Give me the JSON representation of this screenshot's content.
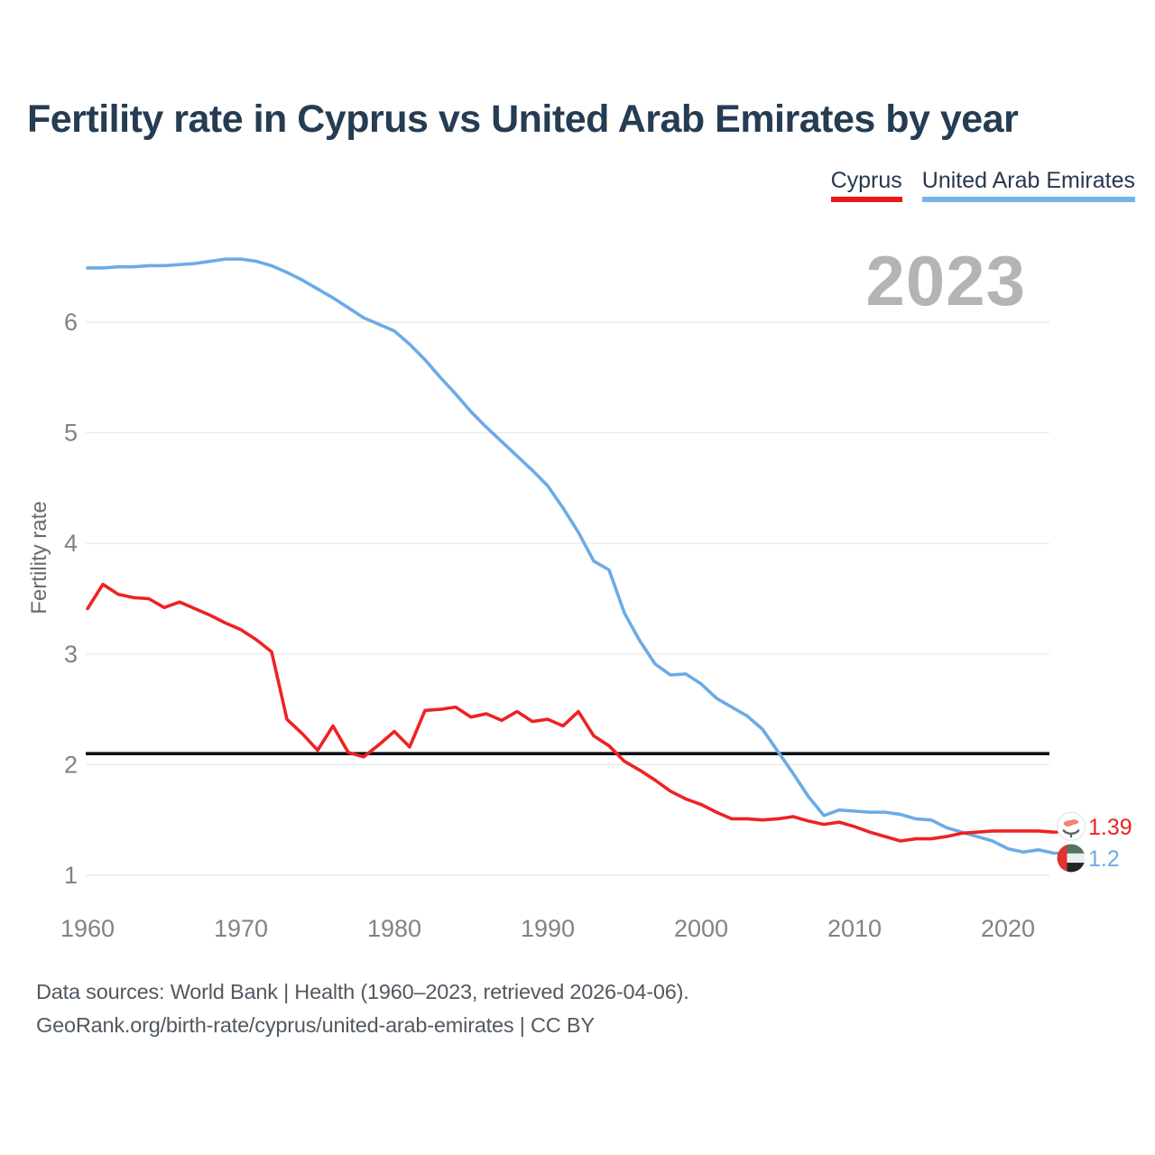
{
  "header": {
    "title": "Fertility rate in Cyprus vs United Arab Emirates by year",
    "legend": [
      {
        "label": "Cyprus",
        "color": "#ee1717"
      },
      {
        "label": "United Arab Emirates",
        "color": "#78b2e8"
      }
    ]
  },
  "watermark_year": "2023",
  "chart_data": {
    "type": "line",
    "title": "Fertility rate in Cyprus vs United Arab Emirates by year",
    "xlabel": "",
    "ylabel": "Fertility rate",
    "x_ticks": [
      1960,
      1970,
      1980,
      1990,
      2000,
      2010,
      2020
    ],
    "y_ticks": [
      1,
      2,
      3,
      4,
      5,
      6
    ],
    "ylim": [
      1,
      6.6
    ],
    "grid": true,
    "legend_position": "top-right",
    "reference_line": 2.1,
    "x": [
      1960,
      1961,
      1962,
      1963,
      1964,
      1965,
      1966,
      1967,
      1968,
      1969,
      1970,
      1971,
      1972,
      1973,
      1974,
      1975,
      1976,
      1977,
      1978,
      1979,
      1980,
      1981,
      1982,
      1983,
      1984,
      1985,
      1986,
      1987,
      1988,
      1989,
      1990,
      1991,
      1992,
      1993,
      1994,
      1995,
      1996,
      1997,
      1998,
      1999,
      2000,
      2001,
      2002,
      2003,
      2004,
      2005,
      2006,
      2007,
      2008,
      2009,
      2010,
      2011,
      2012,
      2013,
      2014,
      2015,
      2016,
      2017,
      2018,
      2019,
      2020,
      2021,
      2022,
      2023
    ],
    "series": [
      {
        "name": "Cyprus",
        "color": "#ee2222",
        "icon": "cyprus-flag-icon",
        "end_label": "1.39",
        "values": [
          3.41,
          3.63,
          3.54,
          3.51,
          3.5,
          3.42,
          3.47,
          3.41,
          3.35,
          3.28,
          3.22,
          3.13,
          3.02,
          2.41,
          2.28,
          2.13,
          2.35,
          2.11,
          2.07,
          2.18,
          2.3,
          2.16,
          2.49,
          2.5,
          2.52,
          2.43,
          2.46,
          2.4,
          2.48,
          2.39,
          2.41,
          2.35,
          2.48,
          2.26,
          2.17,
          2.03,
          1.95,
          1.86,
          1.76,
          1.69,
          1.64,
          1.57,
          1.51,
          1.51,
          1.5,
          1.51,
          1.53,
          1.49,
          1.46,
          1.48,
          1.44,
          1.39,
          1.35,
          1.31,
          1.33,
          1.33,
          1.35,
          1.38,
          1.39,
          1.4,
          1.4,
          1.4,
          1.4,
          1.39
        ]
      },
      {
        "name": "United Arab Emirates",
        "color": "#6babe6",
        "icon": "uae-flag-icon",
        "end_label": "1.2",
        "values": [
          6.49,
          6.49,
          6.5,
          6.5,
          6.51,
          6.51,
          6.52,
          6.53,
          6.55,
          6.57,
          6.57,
          6.55,
          6.51,
          6.45,
          6.38,
          6.3,
          6.22,
          6.13,
          6.04,
          5.98,
          5.92,
          5.8,
          5.66,
          5.5,
          5.35,
          5.19,
          5.05,
          4.92,
          4.79,
          4.66,
          4.52,
          4.32,
          4.1,
          3.84,
          3.76,
          3.37,
          3.12,
          2.91,
          2.81,
          2.82,
          2.73,
          2.6,
          2.52,
          2.44,
          2.32,
          2.12,
          1.92,
          1.71,
          1.54,
          1.59,
          1.58,
          1.57,
          1.57,
          1.55,
          1.51,
          1.5,
          1.43,
          1.39,
          1.35,
          1.31,
          1.24,
          1.21,
          1.23,
          1.2
        ]
      }
    ]
  },
  "footer": {
    "line1": "Data sources: World Bank | Health (1960–2023, retrieved 2026-04-06).",
    "line2": "GeoRank.org/birth-rate/cyprus/united-arab-emirates | CC BY"
  }
}
